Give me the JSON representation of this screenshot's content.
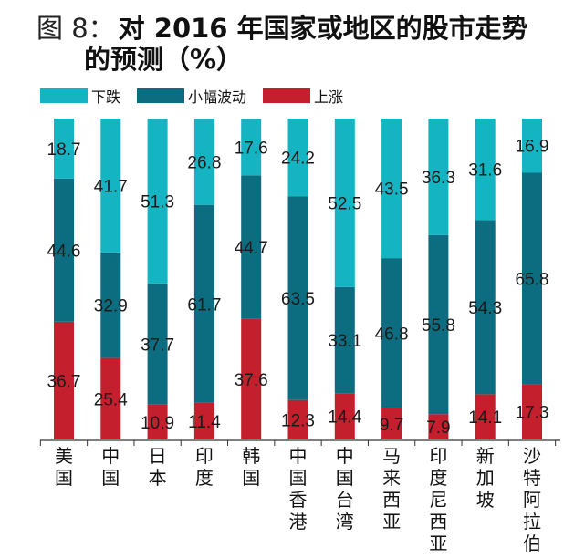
{
  "figure": {
    "label": "图 8：",
    "title_line1": "对 2016 年国家或地区的股市走势",
    "title_line2": "的预测（%）"
  },
  "colors": {
    "down": "#14b4c3",
    "sideways": "#0d6d80",
    "up": "#c31f2c"
  },
  "chart_data": {
    "type": "bar",
    "stacked": true,
    "title": "对 2016 年国家或地区的股市走势的预测（%）",
    "xlabel": "",
    "ylabel": "",
    "ylim": [
      0,
      100
    ],
    "legend_position": "top-left",
    "categories": [
      "美国",
      "中国",
      "日本",
      "印度",
      "韩国",
      "中国香港",
      "中国台湾",
      "马来西亚",
      "印度尼西亚",
      "新加坡",
      "沙特阿拉伯"
    ],
    "series": [
      {
        "name": "上涨",
        "values": [
          36.7,
          25.4,
          10.9,
          11.4,
          37.6,
          12.3,
          14.4,
          9.7,
          7.9,
          14.1,
          17.3
        ]
      },
      {
        "name": "小幅波动",
        "values": [
          44.6,
          32.9,
          37.7,
          61.7,
          44.7,
          63.5,
          33.1,
          46.8,
          55.8,
          54.3,
          65.8
        ]
      },
      {
        "name": "下跌",
        "values": [
          18.7,
          41.7,
          51.3,
          26.8,
          17.6,
          24.2,
          52.5,
          43.5,
          36.3,
          31.6,
          16.9
        ]
      }
    ],
    "legend": [
      "下跌",
      "小幅波动",
      "上涨"
    ]
  }
}
